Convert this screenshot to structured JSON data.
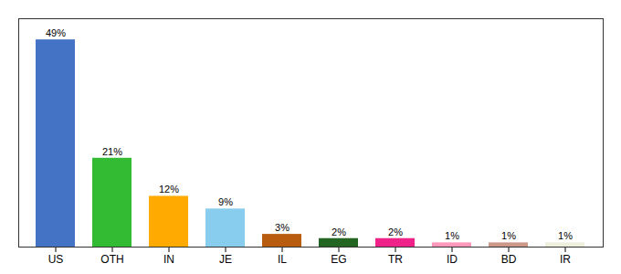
{
  "chart_data": {
    "type": "bar",
    "categories": [
      "US",
      "OTH",
      "IN",
      "JE",
      "IL",
      "EG",
      "TR",
      "ID",
      "BD",
      "IR"
    ],
    "values": [
      49,
      21,
      12,
      9,
      3,
      2,
      2,
      1,
      1,
      1
    ],
    "value_labels": [
      "49%",
      "21%",
      "12%",
      "9%",
      "3%",
      "2%",
      "2%",
      "1%",
      "1%",
      "1%"
    ],
    "colors": [
      "#4472c4",
      "#33bb33",
      "#ffaa00",
      "#88ccee",
      "#b85c10",
      "#226622",
      "#ee2288",
      "#ff99bb",
      "#cc9988",
      "#eeeedd"
    ],
    "ylim": [
      0,
      54
    ],
    "data_labels": true,
    "tick_labels": "x",
    "grid": false
  }
}
